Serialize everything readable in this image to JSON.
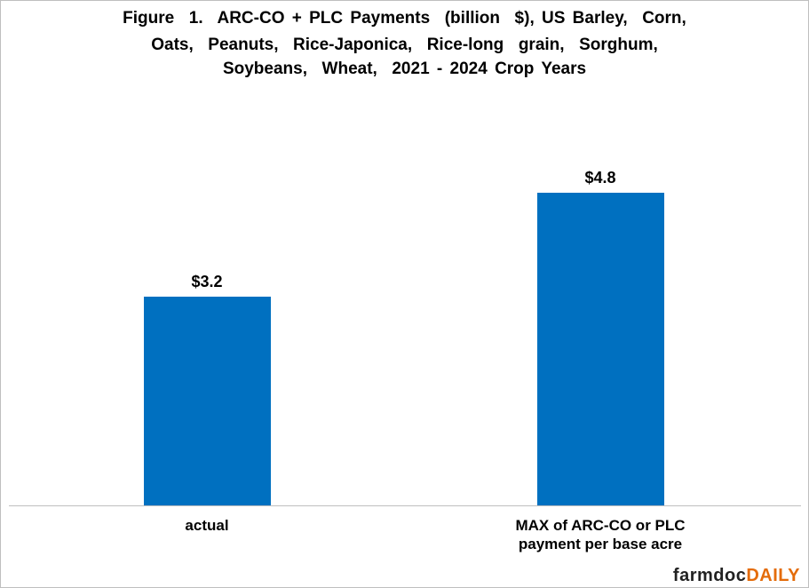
{
  "chart_data": {
    "type": "bar",
    "title_lines": [
      "Figure  1.  ARC-CO + PLC Payments  (billion  $), US Barley,  Corn,",
      "Oats,  Peanuts,  Rice-Japonica,  Rice-long  grain,  Sorghum,",
      "Soybeans,  Wheat,  2021 - 2024 Crop Years"
    ],
    "categories": [
      [
        "actual"
      ],
      [
        "MAX of ARC-CO or PLC",
        "payment per base acre"
      ]
    ],
    "values": [
      3.2,
      4.8
    ],
    "data_labels": [
      "$3.2",
      "$4.8"
    ],
    "bar_color": "#0070c0",
    "ylim": [
      0,
      5.4
    ],
    "xlabel": "",
    "ylabel": "",
    "grid": false,
    "legend": "none"
  },
  "branding": {
    "logo_part1": "farmdoc",
    "logo_part2": "DAILY"
  }
}
